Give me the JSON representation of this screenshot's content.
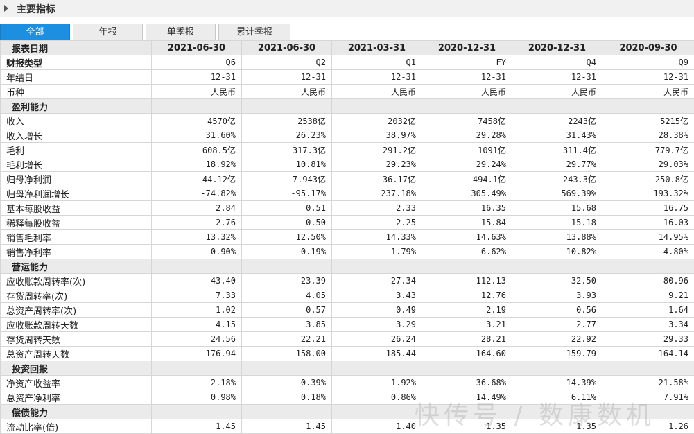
{
  "panel": {
    "title": "主要指标"
  },
  "tabs": [
    "全部",
    "年报",
    "单季报",
    "累计季报"
  ],
  "header": {
    "label": "报表日期",
    "dates": [
      "2021-06-30",
      "2021-06-30",
      "2021-03-31",
      "2020-12-31",
      "2020-12-31",
      "2020-09-30"
    ]
  },
  "rows": [
    {
      "label": "财报类型",
      "values": [
        "Q6",
        "Q2",
        "Q1",
        "FY",
        "Q4",
        "Q9"
      ]
    },
    {
      "label": "年结日",
      "values": [
        "12-31",
        "12-31",
        "12-31",
        "12-31",
        "12-31",
        "12-31"
      ]
    },
    {
      "label": "币种",
      "values": [
        "人民币",
        "人民币",
        "人民币",
        "人民币",
        "人民币",
        "人民币"
      ]
    },
    {
      "section": "盈利能力"
    },
    {
      "label": "收入",
      "values": [
        "4570亿",
        "2538亿",
        "2032亿",
        "7458亿",
        "2243亿",
        "5215亿"
      ]
    },
    {
      "label": "收入增长",
      "values": [
        "31.60%",
        "26.23%",
        "38.97%",
        "29.28%",
        "31.43%",
        "28.38%"
      ]
    },
    {
      "label": "毛利",
      "values": [
        "608.5亿",
        "317.3亿",
        "291.2亿",
        "1091亿",
        "311.4亿",
        "779.7亿"
      ]
    },
    {
      "label": "毛利增长",
      "values": [
        "18.92%",
        "10.81%",
        "29.23%",
        "29.24%",
        "29.77%",
        "29.03%"
      ]
    },
    {
      "label": "归母净利润",
      "values": [
        "44.12亿",
        "7.943亿",
        "36.17亿",
        "494.1亿",
        "243.3亿",
        "250.8亿"
      ]
    },
    {
      "label": "归母净利润增长",
      "values": [
        "-74.82%",
        "-95.17%",
        "237.18%",
        "305.49%",
        "569.39%",
        "193.32%"
      ]
    },
    {
      "label": "基本每股收益",
      "values": [
        "2.84",
        "0.51",
        "2.33",
        "16.35",
        "15.68",
        "16.75"
      ]
    },
    {
      "label": "稀释每股收益",
      "values": [
        "2.76",
        "0.50",
        "2.25",
        "15.84",
        "15.18",
        "16.03"
      ]
    },
    {
      "label": "销售毛利率",
      "values": [
        "13.32%",
        "12.50%",
        "14.33%",
        "14.63%",
        "13.88%",
        "14.95%"
      ]
    },
    {
      "label": "销售净利率",
      "values": [
        "0.90%",
        "0.19%",
        "1.79%",
        "6.62%",
        "10.82%",
        "4.80%"
      ]
    },
    {
      "section": "营运能力"
    },
    {
      "label": "应收账款周转率(次)",
      "values": [
        "43.40",
        "23.39",
        "27.34",
        "112.13",
        "32.50",
        "80.96"
      ]
    },
    {
      "label": "存货周转率(次)",
      "values": [
        "7.33",
        "4.05",
        "3.43",
        "12.76",
        "3.93",
        "9.21"
      ]
    },
    {
      "label": "总资产周转率(次)",
      "values": [
        "1.02",
        "0.57",
        "0.49",
        "2.19",
        "0.56",
        "1.64"
      ]
    },
    {
      "label": "应收账款周转天数",
      "values": [
        "4.15",
        "3.85",
        "3.29",
        "3.21",
        "2.77",
        "3.34"
      ]
    },
    {
      "label": "存货周转天数",
      "values": [
        "24.56",
        "22.21",
        "26.24",
        "28.21",
        "22.92",
        "29.33"
      ]
    },
    {
      "label": "总资产周转天数",
      "values": [
        "176.94",
        "158.00",
        "185.44",
        "164.60",
        "159.79",
        "164.14"
      ]
    },
    {
      "section": "投资回报"
    },
    {
      "label": "净资产收益率",
      "values": [
        "2.18%",
        "0.39%",
        "1.92%",
        "36.68%",
        "14.39%",
        "21.58%"
      ]
    },
    {
      "label": "总资产净利率",
      "values": [
        "0.98%",
        "0.18%",
        "0.86%",
        "14.49%",
        "6.11%",
        "7.91%"
      ]
    },
    {
      "section": "偿债能力"
    },
    {
      "label": "流动比率(倍)",
      "values": [
        "1.45",
        "1.45",
        "1.40",
        "1.35",
        "1.35",
        "1.26"
      ]
    }
  ],
  "watermark": "快传号 / 数康数机"
}
